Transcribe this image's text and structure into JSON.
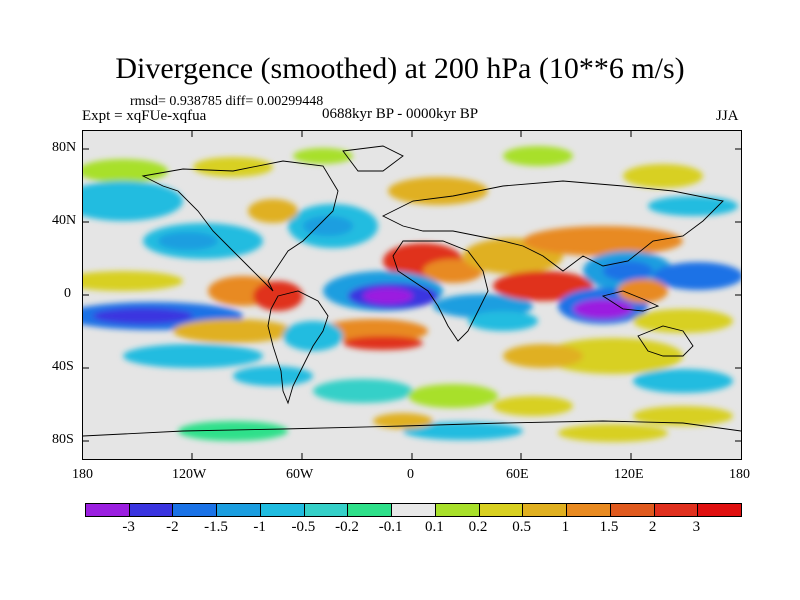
{
  "header": {
    "title": "Divergence (smoothed) at 200 hPa (10**6 m/s)",
    "stats": "rmsd= 0.938785 diff= 0.00299448",
    "experiment": "Expt = xqFUe-xqfua",
    "period": "0688kyr BP - 0000kyr BP",
    "season": "JJA"
  },
  "map": {
    "type": "contour-map",
    "variable": "Divergence (smoothed)",
    "level": "200 hPa",
    "units": "10**6 m/s",
    "lat_labels": [
      "80N",
      "40N",
      "0",
      "40S",
      "80S"
    ],
    "lon_labels": [
      "180",
      "120W",
      "60W",
      "0",
      "60E",
      "120E",
      "180"
    ]
  },
  "colorbar": {
    "labels": [
      "-3",
      "-2",
      "-1.5",
      "-1",
      "-0.5",
      "-0.2",
      "-0.1",
      "0.1",
      "0.2",
      "0.5",
      "1",
      "1.5",
      "2",
      "3"
    ],
    "colors": [
      "#9b1fe0",
      "#3a34e0",
      "#1a72e6",
      "#1b9ee0",
      "#20bce0",
      "#35d0c8",
      "#2ee08a",
      "#e8e8e8",
      "#a8e02a",
      "#d8d020",
      "#e0b020",
      "#e88a20",
      "#e05a1e",
      "#e0301e",
      "#e01010"
    ]
  }
}
